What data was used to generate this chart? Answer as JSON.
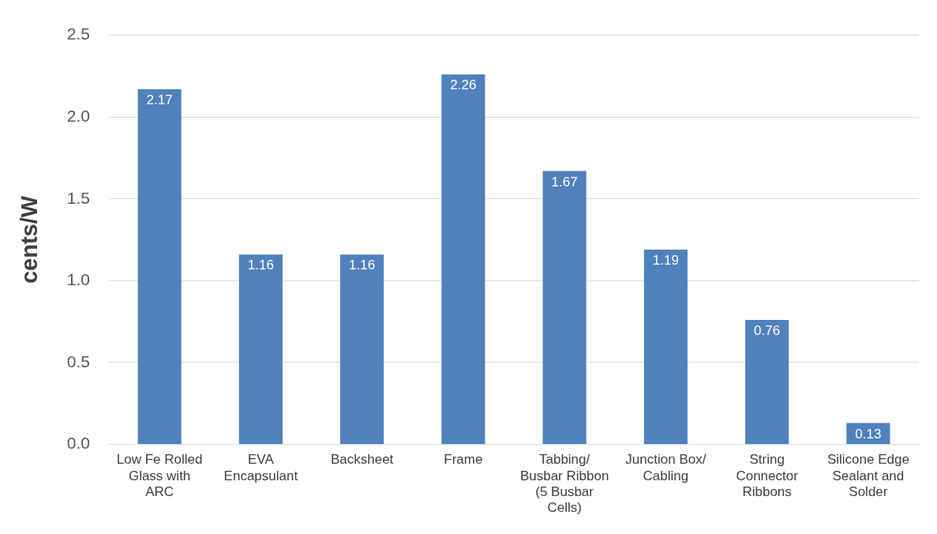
{
  "chart_data": {
    "type": "bar",
    "ylabel": "cents/W",
    "categories": [
      "Low Fe Rolled Glass with ARC",
      "EVA Encapsulant",
      "Backsheet",
      "Frame",
      "Tabbing/ Busbar Ribbon (5 Busbar Cells)",
      "Junction Box/ Cabling",
      "String Connector Ribbons",
      "Silicone Edge Sealant and Solder"
    ],
    "values": [
      2.17,
      1.16,
      1.16,
      2.26,
      1.67,
      1.19,
      0.76,
      0.13
    ],
    "color": "#4f81bd",
    "ylim": [
      0,
      2.5
    ],
    "yticks": [
      {
        "value": 0,
        "label": "0.0"
      },
      {
        "value": 0.5,
        "label": "0.5"
      },
      {
        "value": 1,
        "label": "1.0"
      },
      {
        "value": 1.5,
        "label": "1.5"
      },
      {
        "value": 2,
        "label": "2.0"
      },
      {
        "value": 2.5,
        "label": "2.5"
      }
    ],
    "grid": "y",
    "data_labels": true,
    "legend": false
  }
}
